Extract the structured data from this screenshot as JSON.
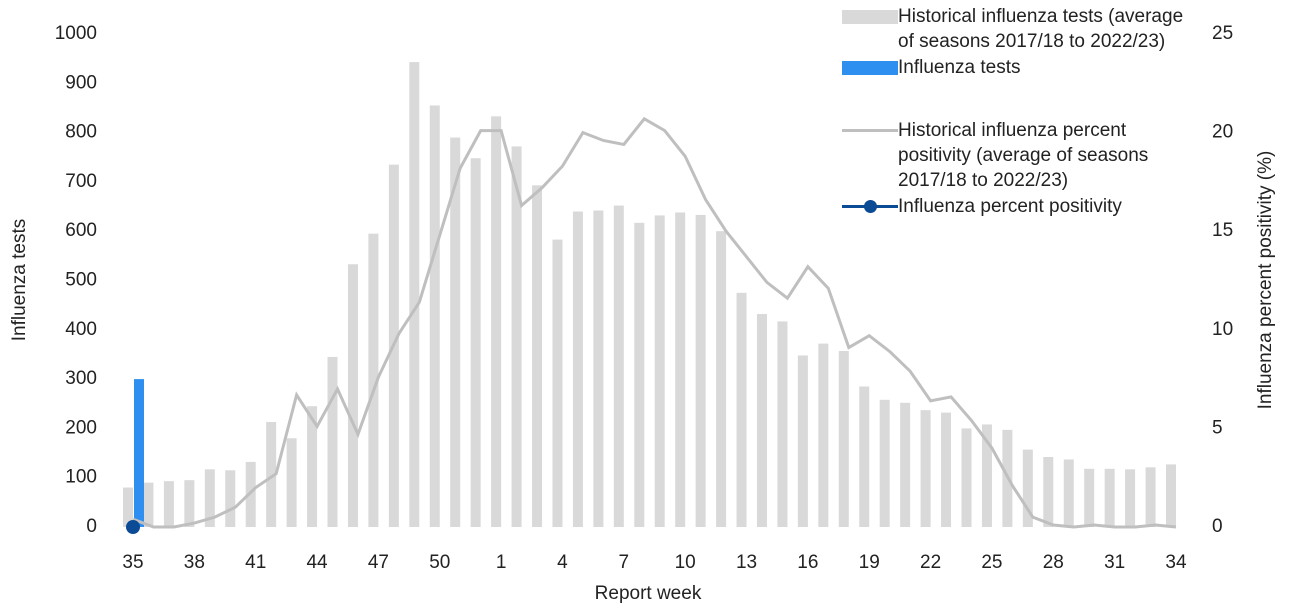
{
  "chart_data": {
    "type": "bar",
    "categories": [
      "35",
      null,
      null,
      "38",
      null,
      null,
      "41",
      null,
      null,
      "44",
      null,
      null,
      "47",
      null,
      null,
      "50",
      null,
      null,
      "1",
      null,
      null,
      "4",
      null,
      null,
      "7",
      null,
      null,
      "10",
      null,
      null,
      "13",
      null,
      null,
      "16",
      null,
      null,
      "19",
      null,
      null,
      "22",
      null,
      null,
      "25",
      null,
      null,
      "28",
      null,
      null,
      "31",
      null,
      null,
      "34"
    ],
    "xlabel": "Report week",
    "ylabel": "Influenza tests",
    "y2label": "Influenza percent positivity (%)",
    "ylim": [
      0,
      1000
    ],
    "yticks": [
      0,
      100,
      200,
      300,
      400,
      500,
      600,
      700,
      800,
      900,
      1000
    ],
    "y2lim": [
      0,
      25
    ],
    "y2ticks": [
      0,
      5,
      10,
      15,
      20,
      25
    ],
    "series": [
      {
        "name": "Historical influenza tests (average of seasons 2017/18 to 2022/23)",
        "type": "bar",
        "color": "#d9d9d9",
        "values": [
          80,
          90,
          93,
          95,
          117,
          115,
          132,
          213,
          180,
          245,
          345,
          533,
          595,
          735,
          943,
          855,
          790,
          748,
          833,
          772,
          693,
          583,
          640,
          642,
          652,
          617,
          632,
          638,
          633,
          600,
          475,
          432,
          417,
          348,
          372,
          357,
          285,
          258,
          252,
          237,
          232,
          200,
          208,
          197,
          157,
          142,
          137,
          118,
          118,
          117,
          121,
          127
        ]
      },
      {
        "name": "Influenza tests",
        "type": "bar",
        "color": "#2f8ff0",
        "values": [
          300,
          null,
          null,
          null,
          null,
          null,
          null,
          null,
          null,
          null,
          null,
          null,
          null,
          null,
          null,
          null,
          null,
          null,
          null,
          null,
          null,
          null,
          null,
          null,
          null,
          null,
          null,
          null,
          null,
          null,
          null,
          null,
          null,
          null,
          null,
          null,
          null,
          null,
          null,
          null,
          null,
          null,
          null,
          null,
          null,
          null,
          null,
          null,
          null,
          null,
          null,
          null
        ]
      },
      {
        "name": "Historical influenza percent positivity (average of seasons 2017/18 to 2022/23)",
        "type": "line",
        "axis": "y2",
        "color": "#bfbfbf",
        "values": [
          0.4,
          0,
          0,
          0.2,
          0.5,
          1.0,
          2.0,
          2.7,
          6.7,
          5.1,
          7.0,
          4.7,
          7.6,
          9.8,
          11.4,
          14.8,
          18.2,
          20.1,
          20.1,
          16.3,
          17.2,
          18.3,
          20.0,
          19.6,
          19.4,
          20.7,
          20.1,
          18.8,
          16.6,
          15.0,
          13.7,
          12.4,
          11.6,
          13.2,
          12.1,
          9.1,
          9.7,
          8.9,
          7.9,
          6.4,
          6.6,
          5.4,
          4.0,
          2.1,
          0.5,
          0.1,
          0,
          0.1,
          0,
          0,
          0.1,
          0
        ]
      },
      {
        "name": "Influenza percent positivity",
        "type": "line",
        "axis": "y2",
        "color": "#0b4a94",
        "markers": true,
        "values": [
          0,
          null,
          null,
          null,
          null,
          null,
          null,
          null,
          null,
          null,
          null,
          null,
          null,
          null,
          null,
          null,
          null,
          null,
          null,
          null,
          null,
          null,
          null,
          null,
          null,
          null,
          null,
          null,
          null,
          null,
          null,
          null,
          null,
          null,
          null,
          null,
          null,
          null,
          null,
          null,
          null,
          null,
          null,
          null,
          null,
          null,
          null,
          null,
          null,
          null,
          null,
          null
        ]
      }
    ]
  }
}
